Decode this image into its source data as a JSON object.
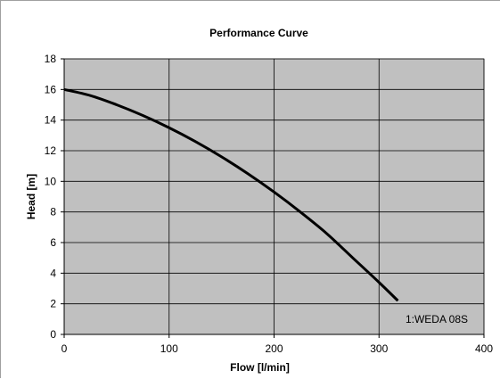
{
  "chart_data": {
    "type": "line",
    "title": "Performance Curve",
    "xlabel": "Flow [l/min]",
    "ylabel": "Head [m]",
    "xlim": [
      0,
      400
    ],
    "ylim": [
      0,
      18
    ],
    "xticks": [
      0,
      100,
      200,
      300,
      400
    ],
    "yticks": [
      0,
      2,
      4,
      6,
      8,
      10,
      12,
      14,
      16,
      18
    ],
    "grid": true,
    "plot_background": "#c0c0c0",
    "series": [
      {
        "name": "1:WEDA 08S",
        "color": "#000000",
        "x": [
          0,
          25,
          50,
          75,
          100,
          125,
          150,
          175,
          200,
          225,
          250,
          275,
          300,
          318
        ],
        "y": [
          16.0,
          15.6,
          15.0,
          14.3,
          13.5,
          12.6,
          11.6,
          10.5,
          9.3,
          8.0,
          6.6,
          5.0,
          3.4,
          2.2
        ]
      }
    ]
  }
}
